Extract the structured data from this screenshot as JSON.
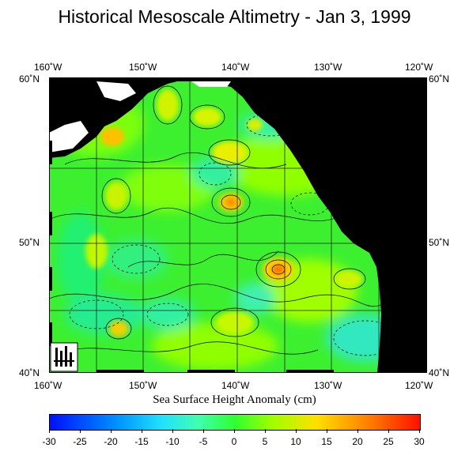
{
  "title": "Historical Mesoscale Altimetry - Jan 3, 1999",
  "lon_labels": [
    "160˚W",
    "150˚W",
    "140˚W",
    "130˚W",
    "120˚W"
  ],
  "lat_labels": [
    "60˚N",
    "50˚N",
    "40˚N"
  ],
  "colorbar": {
    "label": "Sea Surface Height Anomaly (cm)",
    "ticks": [
      "-30",
      "-25",
      "-20",
      "-15",
      "-10",
      "-5",
      "0",
      "5",
      "10",
      "15",
      "20",
      "25",
      "30"
    ]
  },
  "colors": {
    "land": "#000000",
    "ocean_base": "#38f02c",
    "high": "#ffb000",
    "low": "#30d0ff"
  }
}
